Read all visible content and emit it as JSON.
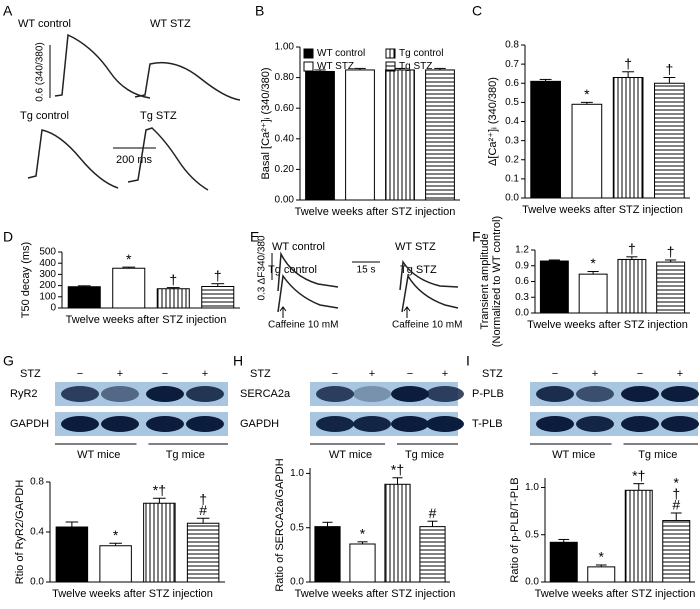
{
  "panel_labels": [
    "A",
    "B",
    "C",
    "D",
    "E",
    "F",
    "G",
    "H",
    "I"
  ],
  "traces_a": {
    "labels": [
      "WT control",
      "WT STZ",
      "Tg control",
      "Tg STZ"
    ],
    "y_scale": "0.6 (340/380)",
    "x_scale": "200 ms"
  },
  "traces_e": {
    "labels": [
      "WT control",
      "WT STZ",
      "Tg control",
      "Tg STZ"
    ],
    "y_scale": "0.3 ΔF340/380",
    "x_scale": "15 s",
    "stimulus": [
      "Caffeine 10 mM",
      "Caffeine 10 mM"
    ]
  },
  "blots": [
    {
      "treatment": "STZ",
      "lanes": [
        "−",
        "+",
        "−",
        "+"
      ],
      "proteins": [
        "RyR2",
        "GAPDH"
      ],
      "groups": [
        "WT mice",
        "Tg mice"
      ]
    },
    {
      "treatment": "STZ",
      "lanes": [
        "−",
        "+",
        "−",
        "+"
      ],
      "proteins": [
        "SERCA2a",
        "GAPDH"
      ],
      "groups": [
        "WT mice",
        "Tg mice"
      ]
    },
    {
      "treatment": "STZ",
      "lanes": [
        "−",
        "+",
        "−",
        "+"
      ],
      "proteins": [
        "P-PLB",
        "T-PLB"
      ],
      "groups": [
        "WT mice",
        "Tg mice"
      ]
    }
  ],
  "chart_data": [
    {
      "type": "bar",
      "ylabel": "Basal [Ca²⁺]ᵢ (340/380)",
      "xlabel": "Twelve weeks after STZ injection",
      "ylim": [
        0,
        1.0
      ],
      "yticks": [
        {
          "value": 0,
          "label": "0.00"
        },
        {
          "value": 0.2,
          "label": "0.20"
        },
        {
          "value": 0.4,
          "label": "0.40"
        },
        {
          "value": 0.6,
          "label": "0.60"
        },
        {
          "value": 0.8,
          "label": "0.80"
        },
        {
          "value": 1.0,
          "label": "1.00"
        }
      ],
      "values": [
        0.84,
        0.85,
        0.85,
        0.85
      ],
      "errors": [
        0.01,
        0.01,
        0.01,
        0.01
      ],
      "bar_styles": [
        "black",
        "white",
        "vertical-stripes",
        "horizontal-stripes"
      ],
      "legend": [
        "WT control",
        "WT STZ",
        "Tg control",
        "Tg STZ"
      ],
      "legend_position": "top"
    },
    {
      "type": "bar",
      "ylabel": "Δ[Ca²⁺]ᵢ (340/380)",
      "xlabel": "Twelve weeks after STZ injection",
      "ylim": [
        0,
        0.8
      ],
      "yticks": [
        {
          "value": 0,
          "label": "0.0"
        },
        0.1,
        0.2,
        0.3,
        0.4,
        0.5,
        0.6,
        0.7,
        0.8
      ],
      "values": [
        0.61,
        0.49,
        0.63,
        0.6
      ],
      "errors": [
        0.01,
        0.01,
        0.03,
        0.03
      ],
      "bar_styles": [
        "black",
        "white",
        "vertical-stripes",
        "horizontal-stripes"
      ],
      "annotations": [
        null,
        [
          "*"
        ],
        [
          "†"
        ],
        [
          "†"
        ]
      ]
    },
    {
      "type": "bar",
      "ylabel": "T50 decay (ms)",
      "xlabel": "Twelve weeks after STZ injection",
      "ylim": [
        0,
        500
      ],
      "yticks": [
        0,
        100,
        200,
        300,
        400,
        500
      ],
      "values": [
        190,
        355,
        172,
        192
      ],
      "errors": [
        8,
        10,
        10,
        25
      ],
      "bar_styles": [
        "black",
        "white",
        "vertical-stripes",
        "horizontal-stripes"
      ],
      "annotations": [
        null,
        [
          "*"
        ],
        [
          "†"
        ],
        [
          "†"
        ]
      ]
    },
    {
      "type": "bar",
      "ylabel": [
        "Transient amplitude",
        "(Normalized to WT control)"
      ],
      "xlabel": "Twelve weeks after STZ injection",
      "ylim": [
        0,
        1.2
      ],
      "yticks": [
        {
          "value": 0,
          "label": "0.0"
        },
        0.3,
        0.6,
        0.9,
        1.2
      ],
      "values": [
        0.99,
        0.74,
        1.02,
        0.97
      ],
      "errors": [
        0.02,
        0.05,
        0.05,
        0.04
      ],
      "bar_styles": [
        "black",
        "white",
        "vertical-stripes",
        "horizontal-stripes"
      ],
      "annotations": [
        null,
        [
          "*"
        ],
        [
          "†"
        ],
        [
          "†"
        ]
      ]
    },
    {
      "type": "bar",
      "ylabel": "Rtio of RyR2/GAPDH",
      "xlabel": "Twelve weeks after STZ injection",
      "ylim": [
        0,
        0.8
      ],
      "yticks": [
        {
          "value": 0,
          "label": "0.0"
        },
        0.4,
        0.8
      ],
      "values": [
        0.44,
        0.29,
        0.63,
        0.47
      ],
      "errors": [
        0.04,
        0.02,
        0.04,
        0.04
      ],
      "bar_styles": [
        "black",
        "white",
        "vertical-stripes",
        "horizontal-stripes"
      ],
      "annotations": [
        null,
        [
          "*"
        ],
        [
          "*†"
        ],
        [
          "†",
          "#"
        ]
      ]
    },
    {
      "type": "bar",
      "ylabel": "Ratio of SERCA2a/GAPDH",
      "xlabel": "Twelve weeks after STZ injection",
      "ylim": [
        0,
        1.05
      ],
      "yticks": [
        {
          "value": 0,
          "label": "0.0"
        },
        0.5,
        {
          "value": 1,
          "label": "1.0"
        }
      ],
      "values": [
        0.51,
        0.35,
        0.9,
        0.51
      ],
      "errors": [
        0.04,
        0.02,
        0.06,
        0.05
      ],
      "bar_styles": [
        "black",
        "white",
        "vertical-stripes",
        "horizontal-stripes"
      ],
      "annotations": [
        null,
        [
          "*"
        ],
        [
          "*†"
        ],
        [
          "#"
        ]
      ]
    },
    {
      "type": "bar",
      "ylabel": "Ratio of p-PLB/T-PLB",
      "xlabel": "Twelve weeks after STZ injection",
      "ylim": [
        0,
        1.1
      ],
      "yticks": [
        {
          "value": 0,
          "label": "0.0"
        },
        0.5,
        {
          "value": 1,
          "label": "1.0"
        }
      ],
      "values": [
        0.42,
        0.16,
        0.97,
        0.65
      ],
      "errors": [
        0.03,
        0.02,
        0.07,
        0.08
      ],
      "bar_styles": [
        "black",
        "white",
        "vertical-stripes",
        "horizontal-stripes"
      ],
      "annotations": [
        null,
        [
          "*"
        ],
        [
          "*†"
        ],
        [
          "*",
          "†",
          "#"
        ]
      ]
    }
  ]
}
